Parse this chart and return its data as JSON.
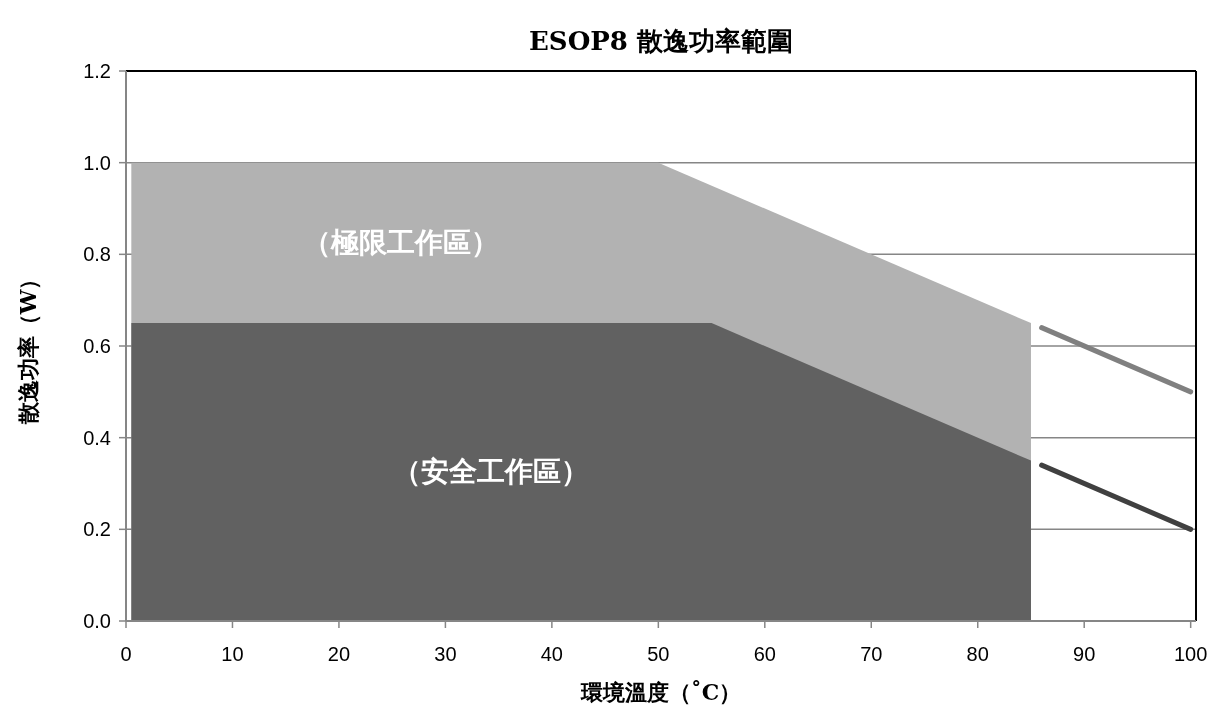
{
  "chart_data": {
    "type": "area",
    "title": "ESOP8 散逸功率範圍",
    "xlabel": "環境溫度（˚C）",
    "ylabel": "散逸功率（W）",
    "series": [
      {
        "color": "#b2b2b2",
        "x": [
          0.5,
          50,
          85
        ],
        "values": [
          1.0,
          1.0,
          0.65
        ]
      },
      {
        "color": "#616161",
        "x": [
          0.5,
          55,
          85
        ],
        "values": [
          0.65,
          0.65,
          0.35
        ]
      },
      {
        "type": "line",
        "color": "#808080",
        "x": [
          86,
          100
        ],
        "values": [
          0.64,
          0.5
        ]
      },
      {
        "type": "line",
        "color": "#404040",
        "x": [
          86,
          100
        ],
        "values": [
          0.34,
          0.2
        ]
      }
    ],
    "annotations": [
      "（極限工作區）",
      "（安全工作區）"
    ],
    "xlim": [
      0,
      100.5
    ],
    "xticks": [
      0,
      10,
      20,
      30,
      40,
      50,
      60,
      70,
      80,
      90,
      100
    ],
    "ylim": [
      0,
      1.2
    ],
    "yticks": [
      {
        "value": 0,
        "label": "0.0"
      },
      {
        "value": 0.2,
        "label": "0.2"
      },
      {
        "value": 0.4,
        "label": "0.4"
      },
      {
        "value": 0.6,
        "label": "0.6"
      },
      {
        "value": 0.8,
        "label": "0.8"
      },
      {
        "value": 1.0,
        "label": "1.0"
      },
      {
        "value": 1.2,
        "label": "1.2"
      }
    ],
    "grid": "y"
  }
}
